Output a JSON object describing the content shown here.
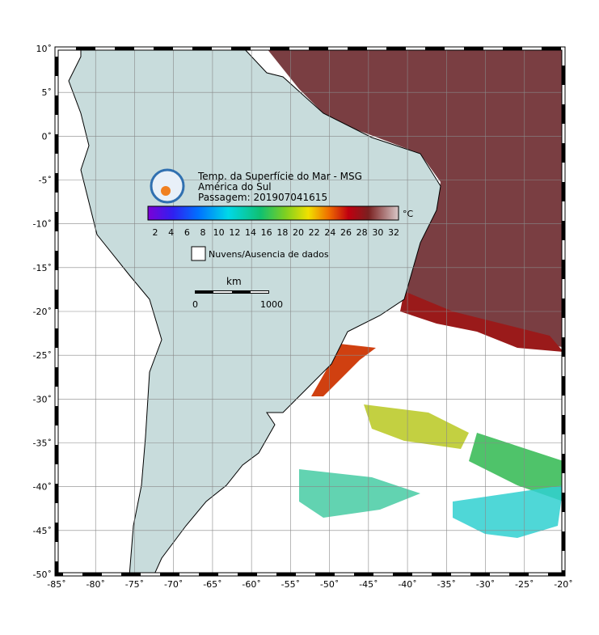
{
  "map": {
    "title": "Temp. da Superfície do Mar - MSG",
    "region": "América do Sul",
    "pass": "Passagem: 201907041615",
    "lon_ticks": [
      {
        "value": -85,
        "label": "-85˚"
      },
      {
        "value": -80,
        "label": "-80˚"
      },
      {
        "value": -75,
        "label": "-75˚"
      },
      {
        "value": -70,
        "label": "-70˚"
      },
      {
        "value": -65,
        "label": "-65˚"
      },
      {
        "value": -60,
        "label": "-60˚"
      },
      {
        "value": -55,
        "label": "-55˚"
      },
      {
        "value": -50,
        "label": "-50˚"
      },
      {
        "value": -45,
        "label": "-45˚"
      },
      {
        "value": -40,
        "label": "-40˚"
      },
      {
        "value": -35,
        "label": "-35˚"
      },
      {
        "value": -30,
        "label": "-30˚"
      },
      {
        "value": -25,
        "label": "-25˚"
      },
      {
        "value": -20,
        "label": "-20˚"
      }
    ],
    "lat_ticks": [
      {
        "value": 10,
        "label": "10˚"
      },
      {
        "value": 5,
        "label": "5˚"
      },
      {
        "value": 0,
        "label": "0˚"
      },
      {
        "value": -5,
        "label": "-5˚"
      },
      {
        "value": -10,
        "label": "-10˚"
      },
      {
        "value": -15,
        "label": "-15˚"
      },
      {
        "value": -20,
        "label": "-20˚"
      },
      {
        "value": -25,
        "label": "-25˚"
      },
      {
        "value": -30,
        "label": "-30˚"
      },
      {
        "value": -35,
        "label": "-35˚"
      },
      {
        "value": -40,
        "label": "-40˚"
      },
      {
        "value": -45,
        "label": "-45˚"
      },
      {
        "value": -50,
        "label": "-50˚"
      }
    ],
    "colorbar": {
      "ticks": [
        2,
        4,
        6,
        8,
        10,
        12,
        14,
        16,
        18,
        20,
        22,
        24,
        26,
        28,
        30,
        32
      ],
      "unit": "°C"
    },
    "legend": "Nuvens/Ausencia de dados",
    "scale": {
      "unit": "km",
      "start": "0",
      "end": "1000"
    }
  }
}
